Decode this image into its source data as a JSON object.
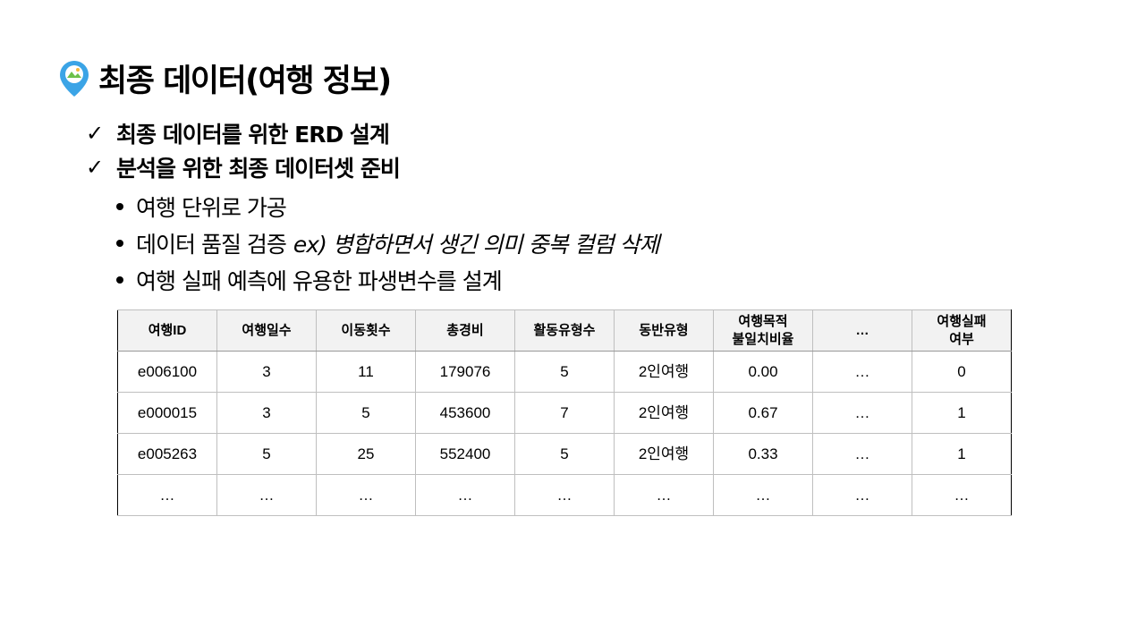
{
  "title": "최종 데이터(여행 정보)",
  "icon": "map-pin-icon",
  "accent_color": "#3ba4e6",
  "checks": [
    "최종 데이터를 위한 ERD 설계",
    "분석을 위한 최종 데이터셋 준비"
  ],
  "bullets": {
    "item1": "여행 단위로 가공",
    "item2_main": "데이터 품질 검증",
    "item2_italic": "ex) 병합하면서 생긴 의미 중복 컬럼 삭제",
    "item3": "여행 실패 예측에 유용한 파생변수를 설계"
  },
  "table": {
    "headers": [
      "여행ID",
      "여행일수",
      "이동횟수",
      "총경비",
      "활동유형수",
      "동반유형",
      "여행목적\n불일치비율",
      "…",
      "여행실패\n여부"
    ],
    "rows": [
      [
        "e006100",
        "3",
        "11",
        "179076",
        "5",
        "2인여행",
        "0.00",
        "…",
        "0"
      ],
      [
        "e000015",
        "3",
        "5",
        "453600",
        "7",
        "2인여행",
        "0.67",
        "…",
        "1"
      ],
      [
        "e005263",
        "5",
        "25",
        "552400",
        "5",
        "2인여행",
        "0.33",
        "…",
        "1"
      ],
      [
        "…",
        "…",
        "…",
        "…",
        "…",
        "…",
        "…",
        "…",
        "…"
      ]
    ]
  }
}
